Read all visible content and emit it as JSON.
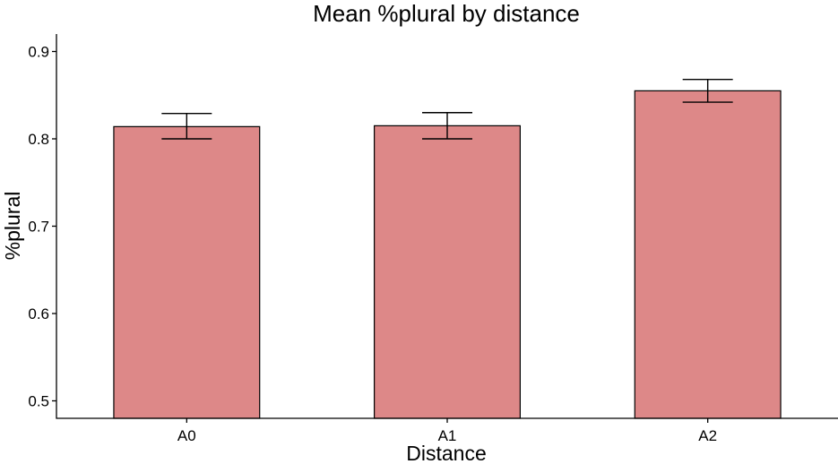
{
  "colors": {
    "bar_fill": "#dd8888",
    "bar_stroke": "#000000",
    "background": "#ffffff"
  },
  "chart_data": {
    "type": "bar",
    "title": "Mean %plural by distance",
    "xlabel": "Distance",
    "ylabel": "%plural",
    "categories": [
      "A0",
      "A1",
      "A2"
    ],
    "values": [
      0.814,
      0.815,
      0.855
    ],
    "error_bars": [
      {
        "low": 0.8,
        "high": 0.829
      },
      {
        "low": 0.8,
        "high": 0.83
      },
      {
        "low": 0.842,
        "high": 0.868
      }
    ],
    "ylim": [
      0.48,
      0.92
    ],
    "yticks": [
      0.5,
      0.6,
      0.7,
      0.8,
      0.9
    ],
    "ytick_labels": [
      "0.5",
      "0.6",
      "0.7",
      "0.8",
      "0.9"
    ],
    "grid": false,
    "legend": "none"
  }
}
